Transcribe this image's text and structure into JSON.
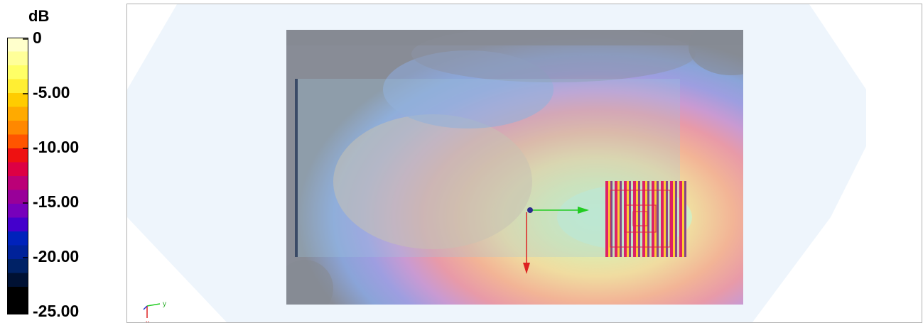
{
  "legend": {
    "unit": "dB",
    "ticks": [
      "0",
      "-5.00",
      "-10.00",
      "-15.00",
      "-20.00",
      "-25.00"
    ],
    "colors": [
      "#ffffcc",
      "#ffff99",
      "#ffff66",
      "#ffee33",
      "#ffcc00",
      "#ffaa00",
      "#ff8800",
      "#ff5500",
      "#ee1111",
      "#dd0044",
      "#bb0077",
      "#990099",
      "#7700bb",
      "#4400cc",
      "#0022bb",
      "#002299",
      "#002266",
      "#001133",
      "#000000",
      "#000000"
    ]
  },
  "triad": {
    "y_label": "y",
    "x_label": "x"
  }
}
